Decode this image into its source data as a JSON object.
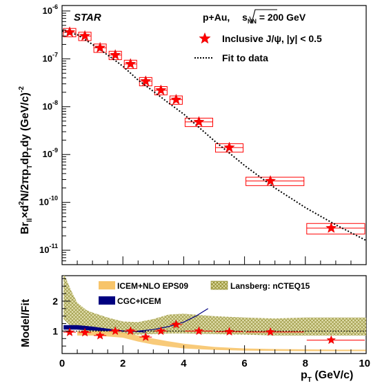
{
  "chart_data": [
    {
      "type": "scatter",
      "y_scale": "log",
      "experiment": "STAR",
      "system_label": "p+Au, ",
      "energy_label": " = 200 GeV",
      "energy_symbol_s": "s",
      "energy_symbol_sub": "NN",
      "xlim": [
        0,
        10
      ],
      "ylim": [
        5e-12,
        1.3e-06
      ],
      "ylabel_parts": [
        "Br",
        "ll",
        "×d",
        "2",
        "N/2πp",
        "T",
        "dp",
        "T",
        "dy (GeV/c)",
        "-2"
      ],
      "y_ticks": [
        {
          "value": 1e-06,
          "base": "10",
          "exp": "-6"
        },
        {
          "value": 1e-07,
          "base": "10",
          "exp": "-7"
        },
        {
          "value": 1e-08,
          "base": "10",
          "exp": "-8"
        },
        {
          "value": 1e-09,
          "base": "10",
          "exp": "-9"
        },
        {
          "value": 1e-10,
          "base": "10",
          "exp": "-10"
        },
        {
          "value": 1e-11,
          "base": "10",
          "exp": "-11"
        }
      ],
      "legend": [
        {
          "label": "Inclusive J/ψ, |y| < 0.5",
          "marker": "star",
          "color": "#ff0000"
        },
        {
          "label": "Fit to data",
          "marker": "dotted-line",
          "color": "#000000"
        }
      ],
      "series": [
        {
          "name": "Inclusive J/ψ, |y| < 0.5",
          "x": [
            0.25,
            0.75,
            1.25,
            1.75,
            2.25,
            2.75,
            3.25,
            3.75,
            4.5,
            5.5,
            6.85,
            8.85
          ],
          "y": [
            3.6e-07,
            3e-07,
            1.7e-07,
            1.2e-07,
            7.8e-08,
            3.4e-08,
            2.2e-08,
            1.4e-08,
            4.8e-09,
            1.4e-09,
            2.8e-10,
            2.9e-11
          ],
          "x_low": [
            0.0,
            0.5,
            1.0,
            1.5,
            2.0,
            2.5,
            3.0,
            3.5,
            4.0,
            5.0,
            6.0,
            8.0
          ],
          "x_high": [
            0.5,
            1.0,
            1.5,
            2.0,
            2.5,
            3.0,
            3.5,
            4.0,
            5.0,
            6.0,
            8.0,
            10.0
          ],
          "sys_rel": [
            0.2,
            0.2,
            0.2,
            0.2,
            0.2,
            0.2,
            0.2,
            0.2,
            0.2,
            0.2,
            0.2,
            0.25
          ]
        }
      ],
      "fit_curve": {
        "name": "Fit to data",
        "x": [
          0.0,
          0.5,
          1.0,
          1.5,
          2.0,
          2.5,
          3.0,
          3.5,
          4.0,
          5.0,
          6.0,
          7.0,
          8.0,
          9.0,
          10.0
        ],
        "y": [
          3.8e-07,
          3.2e-07,
          2e-07,
          1.2e-07,
          7e-08,
          3.6e-08,
          2.1e-08,
          1.2e-08,
          7e-09,
          1.95e-09,
          5.9e-10,
          2e-10,
          7.8e-11,
          3.4e-11,
          1.6e-11
        ]
      }
    },
    {
      "type": "line",
      "xlabel_p": "p",
      "xlabel_sub": "T",
      "xlabel_unit": " (GeV/c)",
      "ylabel": "Model/Fit",
      "xlim": [
        0,
        10
      ],
      "ylim": [
        0.25,
        2.85
      ],
      "x_ticks": [
        "0",
        "2",
        "4",
        "6",
        "8",
        "10"
      ],
      "y_ticks": [
        "1",
        "2"
      ],
      "legend": [
        {
          "label": "ICEM+NLO EPS09",
          "color": "#f7c46a"
        },
        {
          "label": "CGC+ICEM",
          "color": "#000080"
        },
        {
          "label": "Lansberg: nCTEQ15",
          "color": "#b5b040"
        }
      ],
      "data_ratio": {
        "x": [
          0.25,
          0.75,
          1.25,
          1.75,
          2.25,
          2.75,
          3.25,
          3.75,
          4.5,
          5.5,
          6.85,
          8.85
        ],
        "y": [
          0.96,
          0.95,
          0.85,
          1.0,
          1.0,
          0.8,
          1.0,
          1.22,
          1.0,
          0.98,
          0.97,
          0.7
        ],
        "x_low": [
          0.0,
          0.5,
          1.0,
          1.5,
          2.0,
          2.5,
          3.0,
          3.5,
          4.0,
          5.0,
          6.0,
          8.0
        ],
        "x_high": [
          0.5,
          1.0,
          1.5,
          2.0,
          2.5,
          3.0,
          3.5,
          4.0,
          5.0,
          6.0,
          8.0,
          10.0
        ]
      },
      "bands": [
        {
          "name": "Lansberg: nCTEQ15",
          "x": [
            0.05,
            0.3,
            0.5,
            0.8,
            1.0,
            1.5,
            2.0,
            2.5,
            3.0,
            3.5,
            4.0,
            5.0,
            6.0,
            7.0,
            8.0,
            9.0,
            10.0
          ],
          "high": [
            2.95,
            2.35,
            1.95,
            1.7,
            1.62,
            1.45,
            1.32,
            1.3,
            1.4,
            1.55,
            1.58,
            1.5,
            1.45,
            1.42,
            1.45,
            1.45,
            1.45
          ],
          "low": [
            1.4,
            1.15,
            1.05,
            1.0,
            0.95,
            0.92,
            0.9,
            0.88,
            0.9,
            0.92,
            0.92,
            0.9,
            0.88,
            0.85,
            0.85,
            0.85,
            0.85
          ]
        },
        {
          "name": "ICEM+NLO EPS09",
          "x": [
            0.5,
            1.0,
            1.5,
            2.0,
            2.5,
            3.0,
            3.5,
            4.0,
            5.0,
            6.0,
            7.0,
            8.0,
            9.0,
            10.0
          ],
          "high": [
            1.0,
            1.0,
            0.98,
            0.95,
            0.85,
            0.75,
            0.66,
            0.58,
            0.47,
            0.42,
            0.4,
            0.39,
            0.38,
            0.38
          ],
          "low": [
            0.85,
            0.85,
            0.82,
            0.78,
            0.65,
            0.55,
            0.48,
            0.42,
            0.37,
            0.35,
            0.34,
            0.33,
            0.33,
            0.33
          ]
        },
        {
          "name": "CGC+ICEM",
          "x": [
            0.05,
            0.5,
            1.0,
            1.5,
            2.0,
            2.5,
            2.75
          ],
          "high": [
            1.2,
            1.2,
            1.15,
            1.08,
            1.02,
            1.0,
            0.98
          ],
          "low": [
            1.05,
            1.05,
            1.02,
            1.0,
            0.98,
            0.97,
            0.95
          ]
        }
      ],
      "line": {
        "name": "CGC+ICEM (extension)",
        "x": [
          2.5,
          3.0,
          3.5,
          4.0,
          4.4,
          4.8
        ],
        "y": [
          1.0,
          1.05,
          1.15,
          1.3,
          1.5,
          1.75
        ]
      }
    }
  ]
}
